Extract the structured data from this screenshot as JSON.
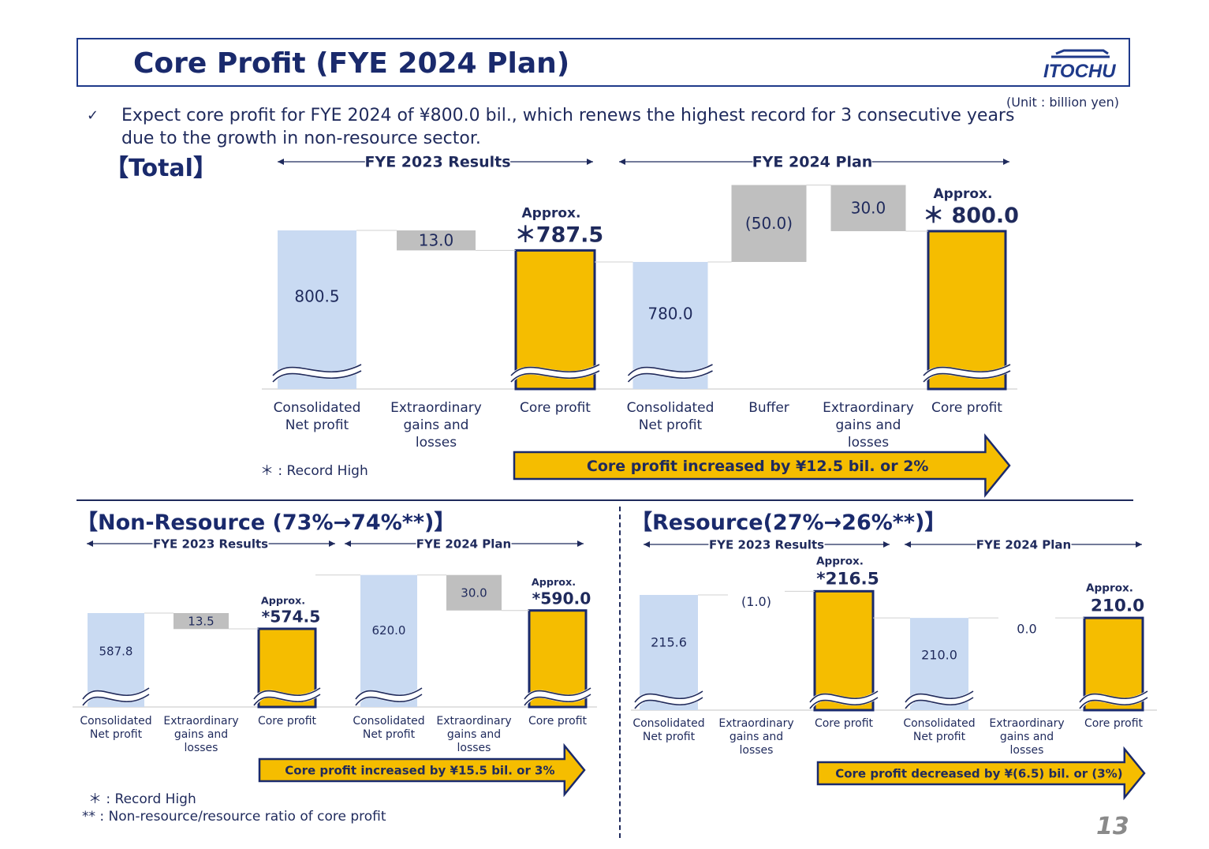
{
  "header": {
    "title": "Core Profit (FYE 2024 Plan)",
    "logo_text": "ITOCHU",
    "unit": "(Unit : billion yen)",
    "page_number": "13"
  },
  "bullet": {
    "check": "✓",
    "text": "Expect core profit for FYE 2024 of ¥800.0 bil., which renews the highest record for 3 consecutive years due to the growth in non-resource sector."
  },
  "sections": {
    "total": "【Total】",
    "non_resource": "【Non-Resource (73%→74%**)】",
    "resource": "【Resource(27%→26%**)】"
  },
  "notes": {
    "record_high_total": "＊ : Record High",
    "record_high_bottom": "＊ : Record High",
    "ratio_note": "** : Non-resource/resource ratio of core profit"
  },
  "colors": {
    "base_bar": "#c9daf2",
    "adjust_bar": "#bfbfbf",
    "core_bar": "#f5bd00",
    "core_border": "#1a2a6c",
    "text": "#1f2a5c"
  },
  "chart_data": [
    {
      "id": "total",
      "type": "bar",
      "subtype": "waterfall",
      "groups": [
        "FYE 2023 Results",
        "FYE 2024 Plan"
      ],
      "categories": [
        "Consolidated\nNet profit",
        "Extraordinary\ngains and\nlosses",
        "Core profit",
        "Consolidated\nNet profit",
        "Buffer",
        "Extraordinary\ngains and\nlosses",
        "Core profit"
      ],
      "values": [
        800.5,
        13.0,
        787.5,
        780.0,
        -50.0,
        30.0,
        800.0
      ],
      "labels": [
        "800.5",
        "13.0",
        "＊787.5",
        "780.0",
        "(50.0)",
        "30.0",
        "＊ 800.0"
      ],
      "approx": [
        false,
        false,
        true,
        false,
        false,
        false,
        true
      ],
      "approx_text": "Approx.",
      "kinds": [
        "base",
        "adjust",
        "core",
        "base",
        "adjust",
        "adjust",
        "core"
      ],
      "banner": "Core profit increased by ¥12.5 bil. or 2%"
    },
    {
      "id": "non_resource",
      "type": "bar",
      "subtype": "waterfall",
      "groups": [
        "FYE 2023 Results",
        "FYE 2024 Plan"
      ],
      "categories": [
        "Consolidated\nNet profit",
        "Extraordinary\ngains and\nlosses",
        "Core profit",
        "Consolidated\nNet profit",
        "Extraordinary\ngains and\nlosses",
        "Core profit"
      ],
      "values": [
        587.8,
        13.5,
        574.5,
        620.0,
        30.0,
        590.0
      ],
      "labels": [
        "587.8",
        "13.5",
        "*574.5",
        "620.0",
        "30.0",
        "*590.0"
      ],
      "approx": [
        false,
        false,
        true,
        false,
        false,
        true
      ],
      "approx_text": "Approx.",
      "kinds": [
        "base",
        "adjust",
        "core",
        "base",
        "adjust",
        "core"
      ],
      "banner": "Core profit increased by ¥15.5 bil. or 3%"
    },
    {
      "id": "resource",
      "type": "bar",
      "subtype": "waterfall",
      "groups": [
        "FYE 2023 Results",
        "FYE 2024 Plan"
      ],
      "categories": [
        "Consolidated\nNet profit",
        "Extraordinary\ngains and\nlosses",
        "Core profit",
        "Consolidated\nNet profit",
        "Extraordinary\ngains and\nlosses",
        "Core profit"
      ],
      "values": [
        215.6,
        -1.0,
        216.5,
        210.0,
        0.0,
        210.0
      ],
      "labels": [
        "215.6",
        "(1.0)",
        "*216.5",
        "210.0",
        "0.0",
        "210.0"
      ],
      "approx": [
        false,
        false,
        true,
        false,
        false,
        true
      ],
      "approx_text": "Approx.",
      "kinds": [
        "base",
        "adjust",
        "core",
        "base",
        "adjust",
        "core"
      ],
      "banner": "Core profit decreased by ¥(6.5) bil. or (3%)"
    }
  ]
}
